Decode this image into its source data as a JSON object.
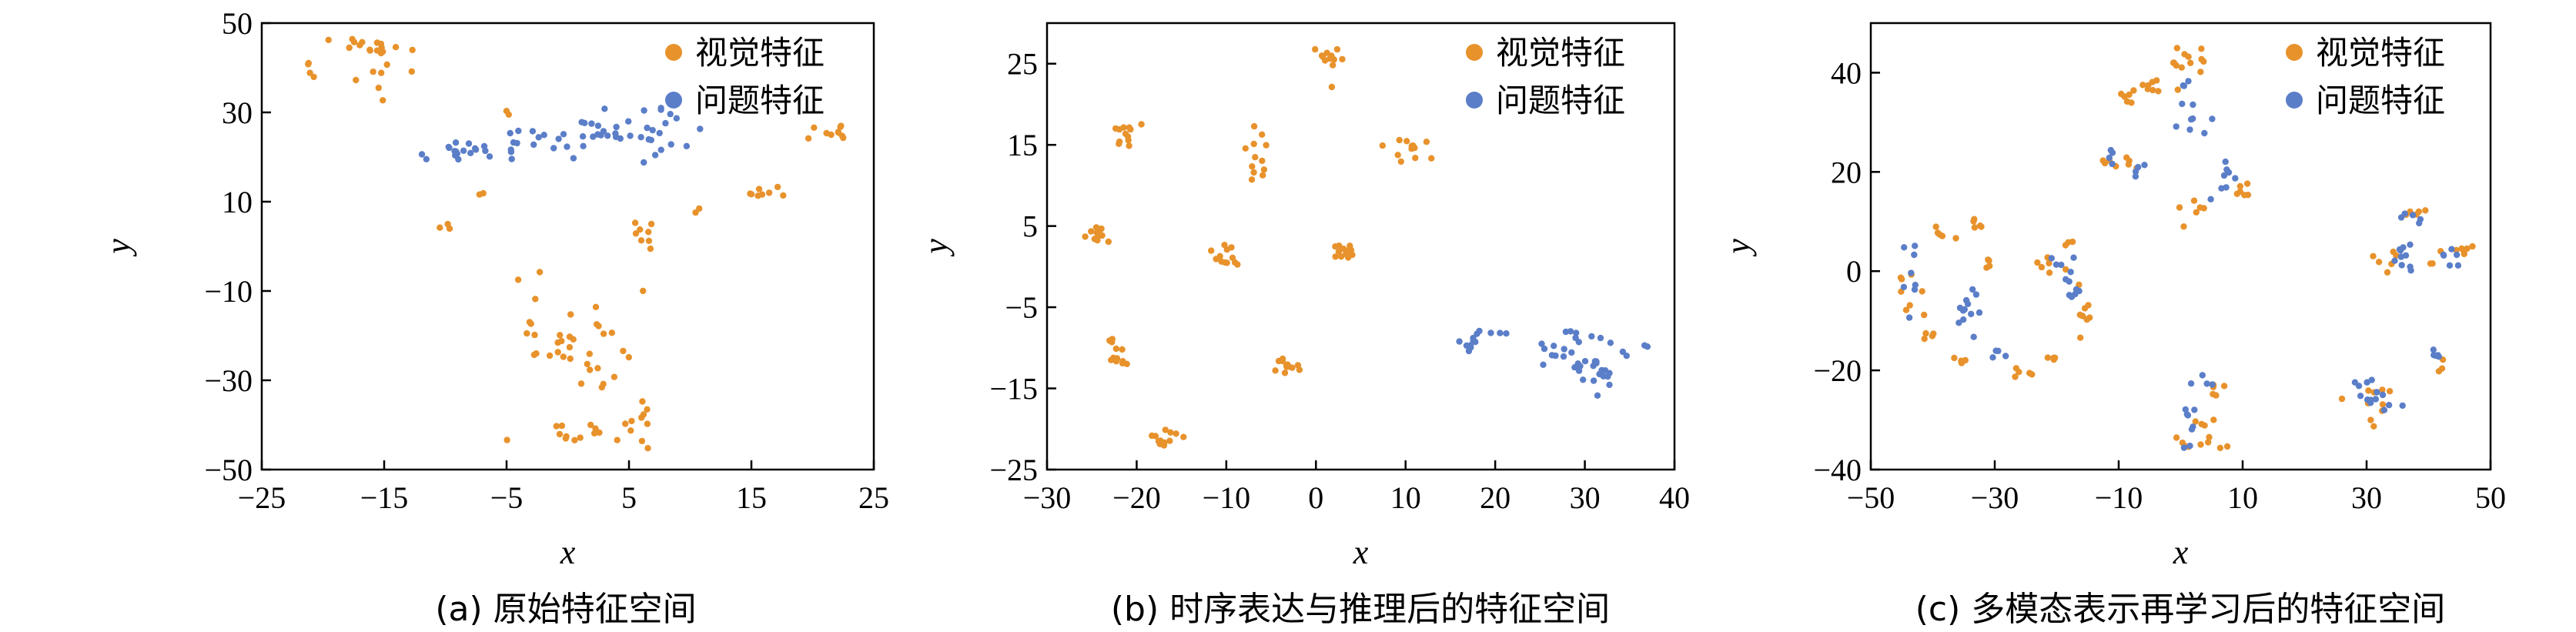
{
  "chart_data": [
    {
      "id": "a",
      "type": "scatter",
      "caption": "(a)  原始特征空间",
      "xlabel": "x",
      "ylabel": "y",
      "xlim": [
        -25,
        25
      ],
      "ylim": [
        -50,
        50
      ],
      "xticks": [
        -25,
        -15,
        -5,
        5,
        15,
        25
      ],
      "yticks": [
        -50,
        -30,
        -10,
        10,
        30,
        50
      ],
      "xtick_labels": [
        "−25",
        "−15",
        "−5",
        "5",
        "15",
        "25"
      ],
      "ytick_labels": [
        "−50",
        "−30",
        "−10",
        "10",
        "30",
        "50"
      ],
      "legend_position": "top-right",
      "series": [
        {
          "name": "视觉特征",
          "color": "#E8922C",
          "clusters": [
            {
              "x": -17,
              "y": 45,
              "sx": 1.2,
              "sy": 1.2,
              "n": 14
            },
            {
              "x": -16,
              "y": 37,
              "sx": 1.0,
              "sy": 2.0,
              "n": 5
            },
            {
              "x": -21,
              "y": 40,
              "sx": 0.8,
              "sy": 2.0,
              "n": 4
            },
            {
              "x": -14,
              "y": 43,
              "sx": 0.8,
              "sy": 1.5,
              "n": 4
            },
            {
              "x": -10,
              "y": 5,
              "sx": 0.4,
              "sy": 1.0,
              "n": 3
            },
            {
              "x": -7,
              "y": 12,
              "sx": 0.3,
              "sy": 0.5,
              "n": 2
            },
            {
              "x": -5,
              "y": 30,
              "sx": 0.3,
              "sy": 0.5,
              "n": 2
            },
            {
              "x": 6,
              "y": 2,
              "sx": 1.0,
              "sy": 2.0,
              "n": 8
            },
            {
              "x": 10.5,
              "y": 8,
              "sx": 0.3,
              "sy": 0.5,
              "n": 2
            },
            {
              "x": 16,
              "y": 12,
              "sx": 0.8,
              "sy": 1.0,
              "n": 8
            },
            {
              "x": 22,
              "y": 26,
              "sx": 0.8,
              "sy": 1.0,
              "n": 10
            },
            {
              "x": -2.5,
              "y": -16,
              "sx": 0.8,
              "sy": 4.0,
              "n": 8
            },
            {
              "x": 0,
              "y": -22,
              "sx": 1.0,
              "sy": 6.0,
              "n": 10
            },
            {
              "x": 4,
              "y": -20,
              "sx": 2.5,
              "sy": 8.0,
              "n": 20
            },
            {
              "x": 0.5,
              "y": -42,
              "sx": 1.5,
              "sy": 2.0,
              "n": 10
            },
            {
              "x": 5,
              "y": -40,
              "sx": 1.5,
              "sy": 3.0,
              "n": 10
            },
            {
              "x": -5.5,
              "y": -43,
              "sx": 0.3,
              "sy": 0.5,
              "n": 1
            }
          ]
        },
        {
          "name": "问题特征",
          "color": "#5B7EC8",
          "clusters": [
            {
              "x": -8.5,
              "y": 21,
              "sx": 1.2,
              "sy": 1.3,
              "n": 16
            },
            {
              "x": -12,
              "y": 20,
              "sx": 0.5,
              "sy": 0.5,
              "n": 2
            },
            {
              "x": -4,
              "y": 23,
              "sx": 1.5,
              "sy": 2.5,
              "n": 10
            },
            {
              "x": 2,
              "y": 24,
              "sx": 2.0,
              "sy": 2.5,
              "n": 20
            },
            {
              "x": 7,
              "y": 25,
              "sx": 1.5,
              "sy": 3.0,
              "n": 22
            }
          ]
        }
      ]
    },
    {
      "id": "b",
      "type": "scatter",
      "caption": "(b)  时序表达与推理后的特征空间",
      "xlabel": "x",
      "ylabel": "y",
      "xlim": [
        -30,
        40
      ],
      "ylim": [
        -25,
        30
      ],
      "xticks": [
        -30,
        -20,
        -10,
        0,
        10,
        20,
        30,
        40
      ],
      "yticks": [
        -25,
        -15,
        -5,
        5,
        15,
        25
      ],
      "xtick_labels": [
        "−30",
        "−20",
        "−10",
        "0",
        "10",
        "20",
        "30",
        "40"
      ],
      "ytick_labels": [
        "−25",
        "−15",
        "−5",
        "5",
        "15",
        "25"
      ],
      "legend_position": "top-right",
      "series": [
        {
          "name": "视觉特征",
          "color": "#E8922C",
          "clusters": [
            {
              "x": 1.5,
              "y": 25.5,
              "sx": 0.7,
              "sy": 1.0,
              "n": 12
            },
            {
              "x": -21.5,
              "y": 16.5,
              "sx": 0.9,
              "sy": 0.8,
              "n": 12
            },
            {
              "x": -6.5,
              "y": 13.5,
              "sx": 0.8,
              "sy": 1.4,
              "n": 12
            },
            {
              "x": 10,
              "y": 14.5,
              "sx": 1.0,
              "sy": 1.0,
              "n": 12
            },
            {
              "x": -24.5,
              "y": 3.5,
              "sx": 0.9,
              "sy": 1.0,
              "n": 12
            },
            {
              "x": -10,
              "y": 1.5,
              "sx": 1.0,
              "sy": 0.9,
              "n": 12
            },
            {
              "x": 3,
              "y": 2,
              "sx": 1.0,
              "sy": 1.0,
              "n": 12
            },
            {
              "x": -22.5,
              "y": -10.5,
              "sx": 0.8,
              "sy": 1.2,
              "n": 12
            },
            {
              "x": -3.5,
              "y": -12,
              "sx": 1.0,
              "sy": 0.8,
              "n": 12
            },
            {
              "x": -17,
              "y": -21,
              "sx": 0.9,
              "sy": 0.9,
              "n": 12
            }
          ]
        },
        {
          "name": "问题特征",
          "color": "#5B7EC8",
          "clusters": [
            {
              "x": 17,
              "y": -9.5,
              "sx": 0.6,
              "sy": 0.8,
              "n": 10
            },
            {
              "x": 21,
              "y": -8,
              "sx": 0.8,
              "sy": 0.4,
              "n": 3
            },
            {
              "x": 26,
              "y": -10,
              "sx": 1.0,
              "sy": 1.0,
              "n": 8
            },
            {
              "x": 29.5,
              "y": -8,
              "sx": 0.8,
              "sy": 0.5,
              "n": 6
            },
            {
              "x": 31,
              "y": -13,
              "sx": 1.2,
              "sy": 1.8,
              "n": 22
            },
            {
              "x": 35,
              "y": -11,
              "sx": 0.4,
              "sy": 0.5,
              "n": 2
            },
            {
              "x": 37,
              "y": -10,
              "sx": 0.3,
              "sy": 0.4,
              "n": 2
            }
          ]
        }
      ]
    },
    {
      "id": "c",
      "type": "scatter",
      "caption": "(c)  多模态表示再学习后的特征空间",
      "xlabel": "x",
      "ylabel": "y",
      "xlim": [
        -50,
        50
      ],
      "ylim": [
        -40,
        50
      ],
      "xticks": [
        -50,
        -30,
        -10,
        10,
        30,
        50
      ],
      "yticks": [
        -40,
        -20,
        0,
        20,
        40
      ],
      "xtick_labels": [
        "−50",
        "−30",
        "−10",
        "10",
        "30",
        "50"
      ],
      "ytick_labels": [
        "−40",
        "−20",
        "0",
        "20",
        "40"
      ],
      "legend_position": "top-right",
      "series": [
        {
          "name": "视觉特征",
          "color": "#E8922C",
          "clusters": [
            {
              "x": 0.5,
              "y": 43,
              "sx": 1.0,
              "sy": 1.5,
              "n": 8
            },
            {
              "x": -3.5,
              "y": 37,
              "sx": 1.8,
              "sy": 1.0,
              "n": 8
            },
            {
              "x": -8,
              "y": 35,
              "sx": 1.2,
              "sy": 0.8,
              "n": 6
            },
            {
              "x": 3,
              "y": 41,
              "sx": 0.8,
              "sy": 1.5,
              "n": 4
            },
            {
              "x": -10,
              "y": 22,
              "sx": 2.0,
              "sy": 1.0,
              "n": 8
            },
            {
              "x": 2,
              "y": 13.5,
              "sx": 1.5,
              "sy": 1.5,
              "n": 6
            },
            {
              "x": 10,
              "y": 17,
              "sx": 1.0,
              "sy": 1.5,
              "n": 6
            },
            {
              "x": -44,
              "y": -5,
              "sx": 1.5,
              "sy": 4.0,
              "n": 8
            },
            {
              "x": -38.5,
              "y": 7.5,
              "sx": 1.5,
              "sy": 1.0,
              "n": 5
            },
            {
              "x": -33,
              "y": 9.5,
              "sx": 0.8,
              "sy": 1.0,
              "n": 5
            },
            {
              "x": -31,
              "y": 1.5,
              "sx": 0.6,
              "sy": 0.8,
              "n": 4
            },
            {
              "x": -40.5,
              "y": -12.5,
              "sx": 1.2,
              "sy": 0.8,
              "n": 4
            },
            {
              "x": -36.5,
              "y": -17.5,
              "sx": 1.0,
              "sy": 0.6,
              "n": 4
            },
            {
              "x": -21,
              "y": 1.5,
              "sx": 1.2,
              "sy": 1.0,
              "n": 6
            },
            {
              "x": -15.5,
              "y": -9,
              "sx": 0.6,
              "sy": 2.5,
              "n": 8
            },
            {
              "x": -17.5,
              "y": 5.5,
              "sx": 0.6,
              "sy": 0.8,
              "n": 3
            },
            {
              "x": -25,
              "y": -20.5,
              "sx": 1.5,
              "sy": 0.8,
              "n": 5
            },
            {
              "x": -19,
              "y": -18,
              "sx": 1.0,
              "sy": 0.8,
              "n": 4
            },
            {
              "x": 3,
              "y": -35,
              "sx": 2.0,
              "sy": 1.0,
              "n": 8
            },
            {
              "x": 6,
              "y": -24,
              "sx": 1.0,
              "sy": 1.0,
              "n": 5
            },
            {
              "x": 4,
              "y": -32,
              "sx": 1.0,
              "sy": 1.5,
              "n": 5
            },
            {
              "x": 31,
              "y": -27,
              "sx": 1.5,
              "sy": 2.0,
              "n": 10
            },
            {
              "x": 37,
              "y": 11.5,
              "sx": 1.5,
              "sy": 0.6,
              "n": 5
            },
            {
              "x": 34,
              "y": 2,
              "sx": 2.0,
              "sy": 1.0,
              "n": 6
            },
            {
              "x": 46,
              "y": 4,
              "sx": 1.0,
              "sy": 1.0,
              "n": 6
            },
            {
              "x": 41,
              "y": 2,
              "sx": 1.0,
              "sy": 0.8,
              "n": 3
            },
            {
              "x": 42,
              "y": -19,
              "sx": 0.5,
              "sy": 1.0,
              "n": 3
            }
          ]
        },
        {
          "name": "问题特征",
          "color": "#5B7EC8",
          "clusters": [
            {
              "x": 2,
              "y": 30,
              "sx": 1.5,
              "sy": 2.5,
              "n": 8
            },
            {
              "x": 0.5,
              "y": 37,
              "sx": 0.6,
              "sy": 1.0,
              "n": 3
            },
            {
              "x": -11.5,
              "y": 23.5,
              "sx": 0.8,
              "sy": 0.8,
              "n": 4
            },
            {
              "x": -7,
              "y": 20,
              "sx": 0.8,
              "sy": 1.0,
              "n": 4
            },
            {
              "x": 7,
              "y": 19,
              "sx": 1.0,
              "sy": 2.5,
              "n": 8
            },
            {
              "x": -43,
              "y": -1,
              "sx": 1.0,
              "sy": 3.0,
              "n": 8
            },
            {
              "x": -34.5,
              "y": -7.5,
              "sx": 1.0,
              "sy": 2.5,
              "n": 12
            },
            {
              "x": -28.5,
              "y": -17.5,
              "sx": 1.0,
              "sy": 1.0,
              "n": 4
            },
            {
              "x": -18,
              "y": -1,
              "sx": 1.5,
              "sy": 3.5,
              "n": 12
            },
            {
              "x": 1.5,
              "y": -31.5,
              "sx": 1.0,
              "sy": 2.0,
              "n": 8
            },
            {
              "x": 3.5,
              "y": -23,
              "sx": 1.0,
              "sy": 0.6,
              "n": 4
            },
            {
              "x": 31,
              "y": -26,
              "sx": 2.0,
              "sy": 2.5,
              "n": 14
            },
            {
              "x": 36,
              "y": 3,
              "sx": 1.0,
              "sy": 2.5,
              "n": 10
            },
            {
              "x": 38,
              "y": 11,
              "sx": 1.5,
              "sy": 0.6,
              "n": 5
            },
            {
              "x": 43,
              "y": 3,
              "sx": 1.5,
              "sy": 1.0,
              "n": 6
            },
            {
              "x": 41.5,
              "y": -17,
              "sx": 0.8,
              "sy": 1.2,
              "n": 5
            }
          ]
        }
      ]
    }
  ]
}
